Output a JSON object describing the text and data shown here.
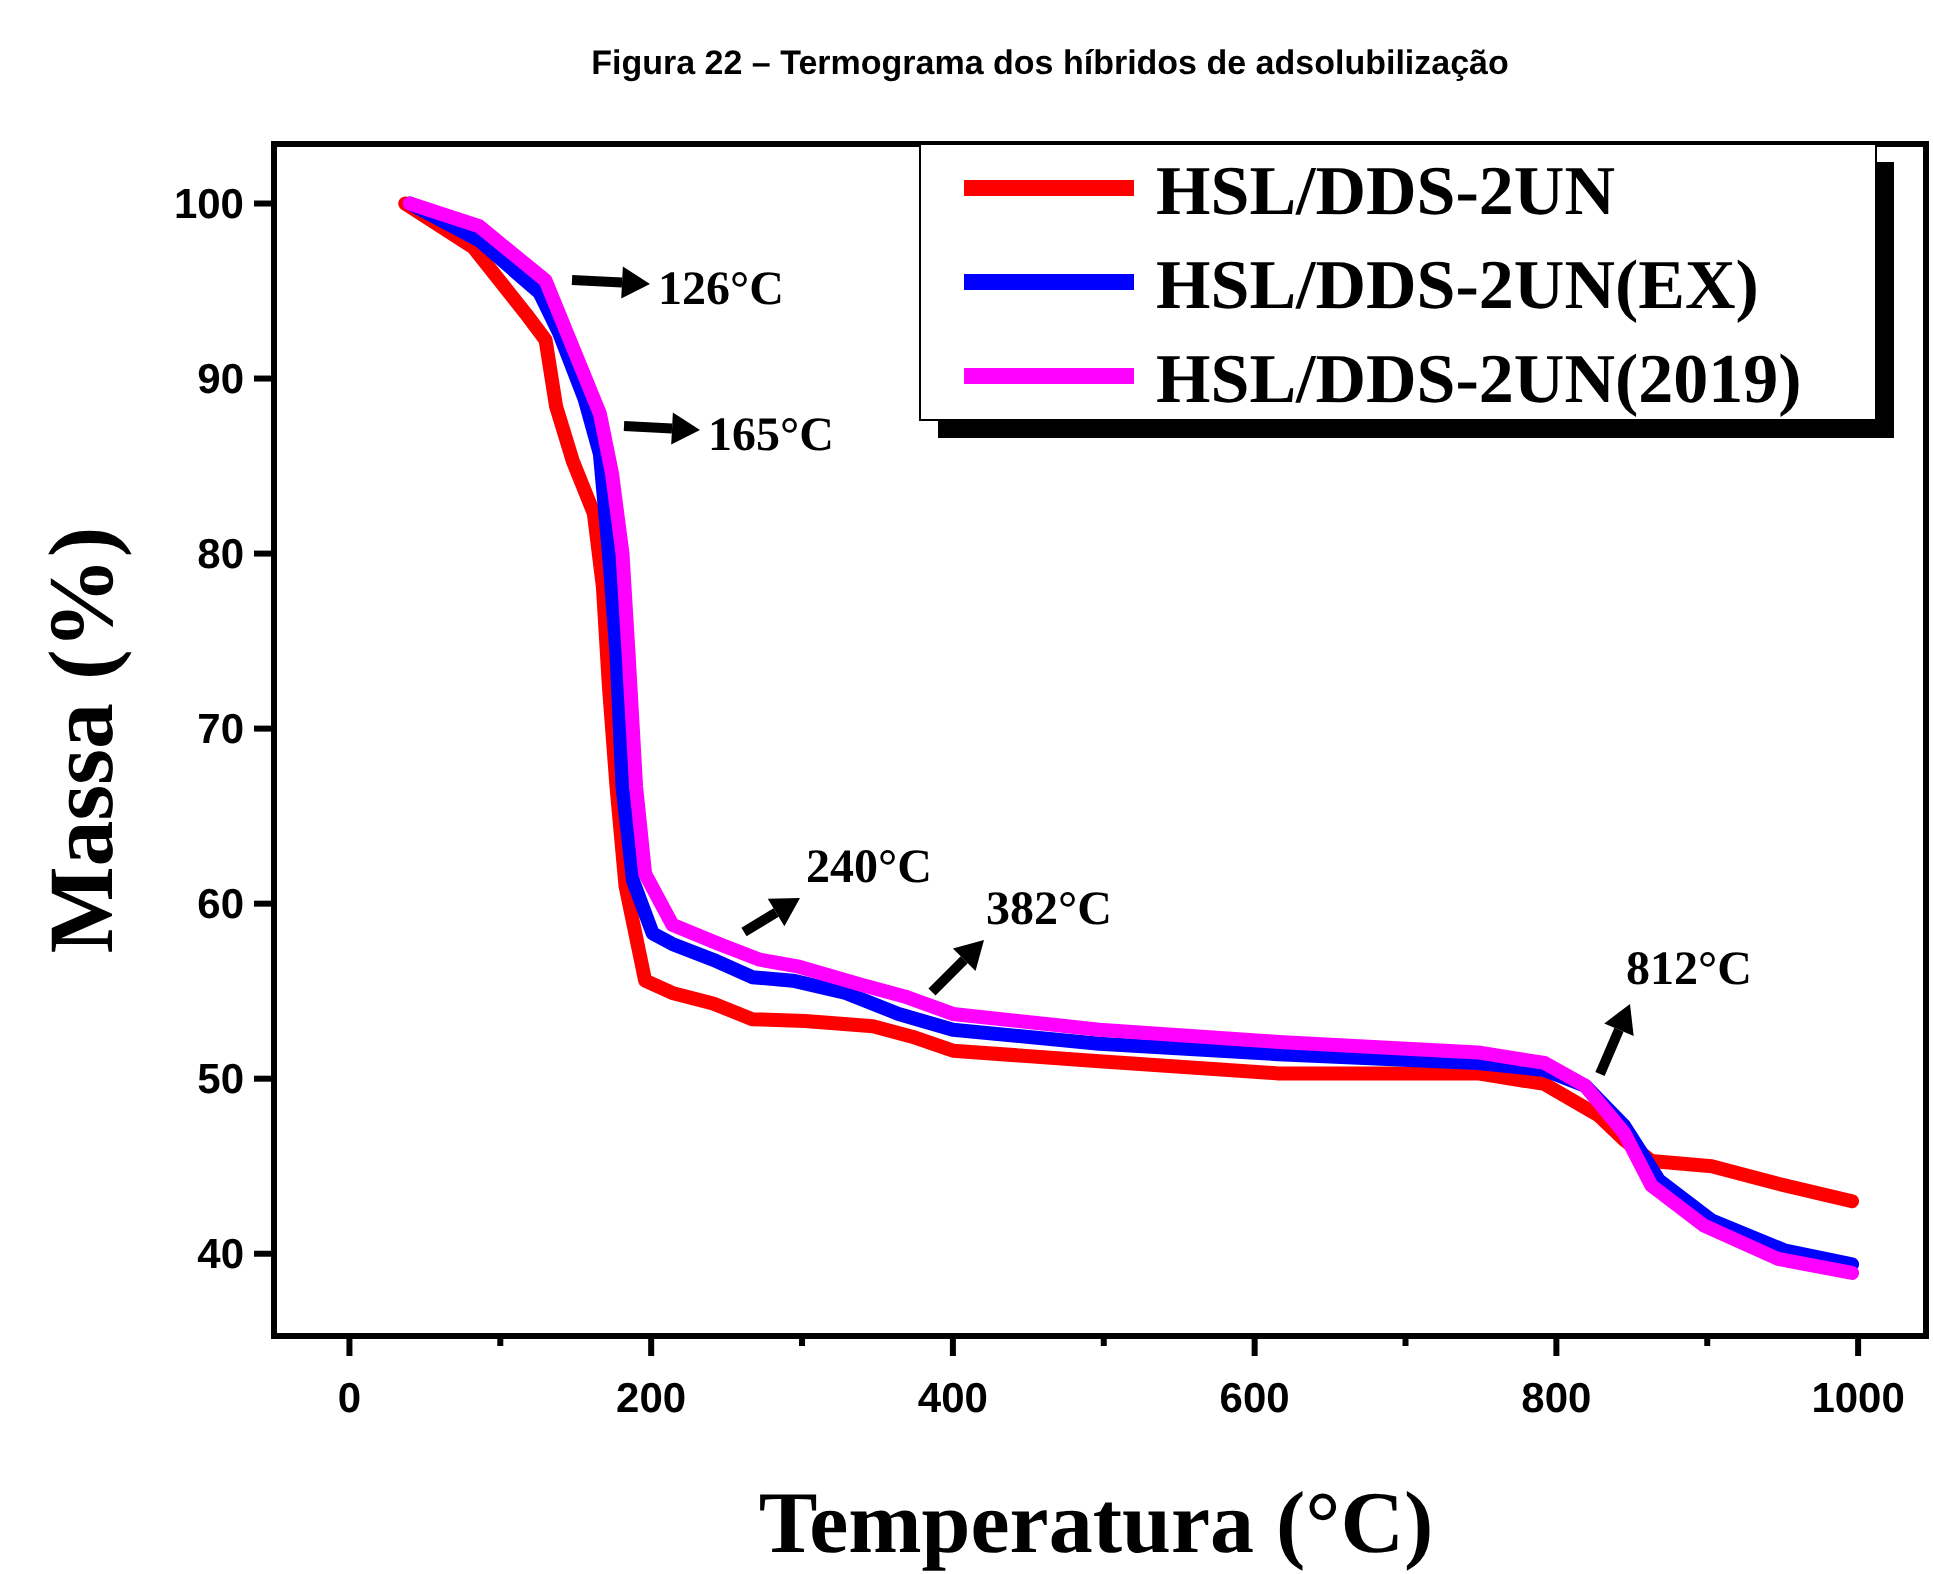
{
  "chart_data": {
    "type": "line",
    "title": "Figura 22 – Termograma dos híbridos de adsolubilização",
    "xlabel": "Temperatura (°C)",
    "ylabel": "Massa (%)",
    "xlim": [
      -50,
      1045
    ],
    "ylim": [
      35.3,
      103.4
    ],
    "xticks": [
      0,
      {
        "value": 100,
        "label": null
      },
      200,
      {
        "value": 300,
        "label": null
      },
      400,
      {
        "value": 500,
        "label": null
      },
      600,
      {
        "value": 700,
        "label": null
      },
      800,
      {
        "value": 900,
        "label": null
      },
      1000
    ],
    "yticks": [
      40,
      50,
      60,
      70,
      80,
      90,
      100
    ],
    "grid": false,
    "legend": "top right",
    "marker": "none",
    "line_style": "solid",
    "annotations": [
      "126°C",
      "165°C",
      "240°C",
      "382°C",
      "812°C"
    ],
    "series": [
      {
        "name": "HSL/DDS-2UN",
        "color": "#ff0000",
        "x": [
          37,
          82,
          117,
          130,
          137,
          148,
          162,
          168,
          172,
          177,
          183,
          196,
          214,
          241,
          267,
          302,
          347,
          373,
          400,
          497,
          616,
          748,
          792,
          828,
          845,
          863,
          903,
          947,
          996
        ],
        "values": [
          100,
          97.5,
          93.7,
          92.2,
          88.4,
          85.3,
          82.3,
          78.1,
          72.4,
          66.7,
          61,
          55.6,
          54.9,
          54.3,
          53.4,
          53.3,
          53,
          52.4,
          51.6,
          51,
          50.3,
          50.3,
          49.7,
          47.9,
          46.5,
          45.3,
          45,
          44,
          43
        ]
      },
      {
        "name": "HSL/DDS-2UN(EX)",
        "color": "#0000ff",
        "x": [
          40,
          86,
          126,
          139,
          156,
          166,
          172,
          177,
          181,
          188,
          201,
          214,
          241,
          267,
          294,
          329,
          364,
          400,
          497,
          616,
          748,
          792,
          819,
          845,
          868,
          903,
          951,
          996
        ],
        "values": [
          100,
          97.9,
          94.9,
          92.6,
          88.8,
          85.7,
          80,
          74.3,
          66.7,
          61.3,
          58.3,
          57.7,
          56.8,
          55.8,
          55.6,
          54.9,
          53.7,
          52.8,
          52,
          51.4,
          50.9,
          50.5,
          49.6,
          47.3,
          44.2,
          41.9,
          40.2,
          39.4
        ]
      },
      {
        "name": "HSL/DDS-2UN(2019)",
        "color": "#ff00ff",
        "x": [
          40,
          86,
          130,
          148,
          166,
          174,
          181,
          185,
          190,
          196,
          214,
          245,
          272,
          298,
          338,
          368,
          400,
          497,
          616,
          748,
          792,
          819,
          845,
          863,
          898,
          947,
          996
        ],
        "values": [
          100,
          98.7,
          95.6,
          91.8,
          88,
          84.6,
          80,
          74.3,
          66.7,
          61.7,
          58.8,
          57.7,
          56.8,
          56.4,
          55.4,
          54.7,
          53.7,
          52.8,
          52.1,
          51.5,
          50.9,
          49.6,
          46.9,
          43.9,
          41.6,
          39.7,
          38.9
        ]
      }
    ]
  }
}
